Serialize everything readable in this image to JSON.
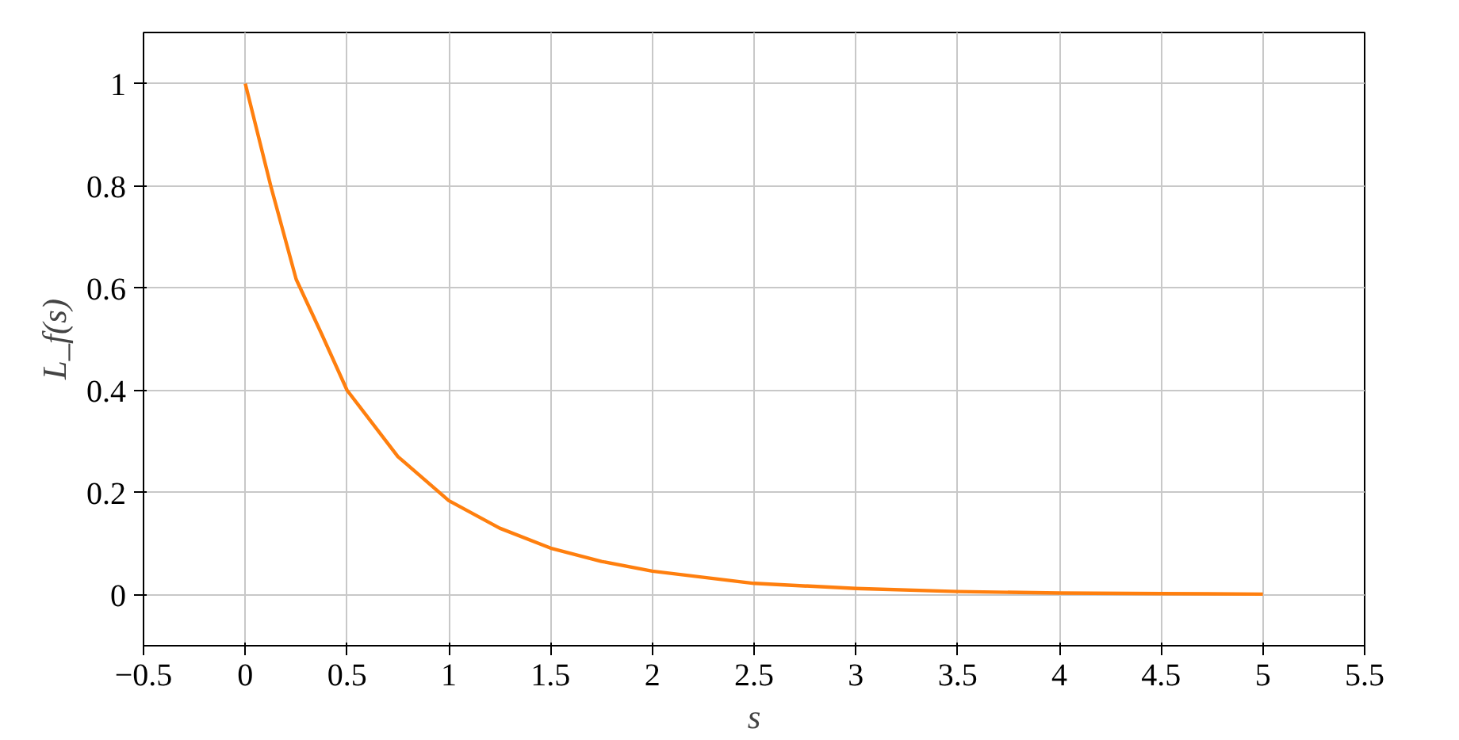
{
  "chart_data": {
    "type": "line",
    "xlabel": "s",
    "ylabel": "L_f(s)",
    "x": [
      0,
      0.125,
      0.25,
      0.375,
      0.5,
      0.75,
      1,
      1.25,
      1.5,
      1.75,
      2,
      2.5,
      3,
      3.5,
      4,
      4.5,
      5
    ],
    "series": [
      {
        "color": "#ff7f0e",
        "values": [
          1,
          0.8,
          0.617,
          0.51,
          0.4,
          0.27,
          0.184,
          0.13,
          0.091,
          0.065,
          0.046,
          0.022,
          0.012,
          0.006,
          0.003,
          0.002,
          0.001
        ]
      }
    ],
    "xlim": [
      -0.5,
      5.5
    ],
    "ylim": [
      -0.1,
      1.1
    ],
    "xticks": [
      {
        "value": -0.5,
        "label": "−0.5"
      },
      0,
      0.5,
      1,
      1.5,
      2,
      2.5,
      3,
      3.5,
      4,
      4.5,
      5,
      5.5
    ],
    "yticks": [
      0,
      0.2,
      0.4,
      0.6,
      0.8,
      1
    ],
    "grid": true,
    "line_style": "solid",
    "marker": "none"
  }
}
